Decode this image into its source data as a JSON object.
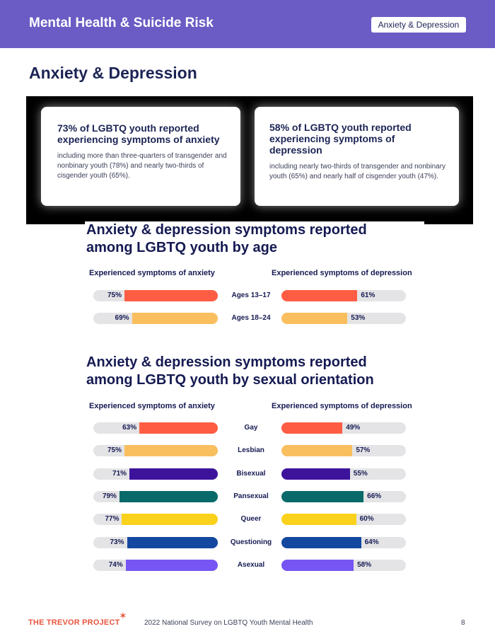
{
  "header": {
    "title": "Mental Health & Suicide Risk",
    "badge": "Anxiety & Depression"
  },
  "section_title": "Anxiety & Depression",
  "cards": [
    {
      "headline": "73% of LGBTQ youth reported experiencing symptoms of anxiety",
      "body": "including more than three-quarters of transgender and nonbinary youth (78%) and nearly two-thirds of cisgender youth (65%)."
    },
    {
      "headline": "58% of LGBTQ youth reported experiencing symptoms of depression",
      "body": "including nearly two-thirds of transgender and nonbinary youth (65%) and nearly half of cisgender youth (47%)."
    }
  ],
  "chart_data": [
    {
      "type": "bar",
      "title": "Anxiety & depression symptoms reported among LGBTQ youth by age",
      "left_header": "Experienced symptoms of anxiety",
      "right_header": "Experienced symptoms of depression",
      "unit": "%",
      "xlim": [
        0,
        100
      ],
      "categories": [
        "Ages 13–17",
        "Ages 18–24"
      ],
      "colors": [
        "#fe5d44",
        "#f9bf5e"
      ],
      "series": [
        {
          "name": "Experienced symptoms of anxiety",
          "values": [
            75,
            69
          ]
        },
        {
          "name": "Experienced symptoms of depression",
          "values": [
            61,
            53
          ]
        }
      ]
    },
    {
      "type": "bar",
      "title": "Anxiety & depression symptoms reported among LGBTQ youth by sexual orientation",
      "left_header": "Experienced symptoms of anxiety",
      "right_header": "Experienced symptoms of depression",
      "unit": "%",
      "xlim": [
        0,
        100
      ],
      "categories": [
        "Gay",
        "Lesbian",
        "Bisexual",
        "Pansexual",
        "Queer",
        "Questioning",
        "Asexual"
      ],
      "colors": [
        "#fe5d44",
        "#f9bf5e",
        "#3d139c",
        "#0a6a6a",
        "#fad21b",
        "#1448a0",
        "#7755f4"
      ],
      "series": [
        {
          "name": "Experienced symptoms of anxiety",
          "values": [
            63,
            75,
            71,
            79,
            77,
            73,
            74
          ]
        },
        {
          "name": "Experienced symptoms of depression",
          "values": [
            49,
            57,
            55,
            66,
            60,
            64,
            58
          ]
        }
      ]
    }
  ],
  "footer": {
    "logo": "THE TREVOR PROJECT",
    "text": "2022 National Survey on LGBTQ Youth Mental Health",
    "page": "8"
  }
}
